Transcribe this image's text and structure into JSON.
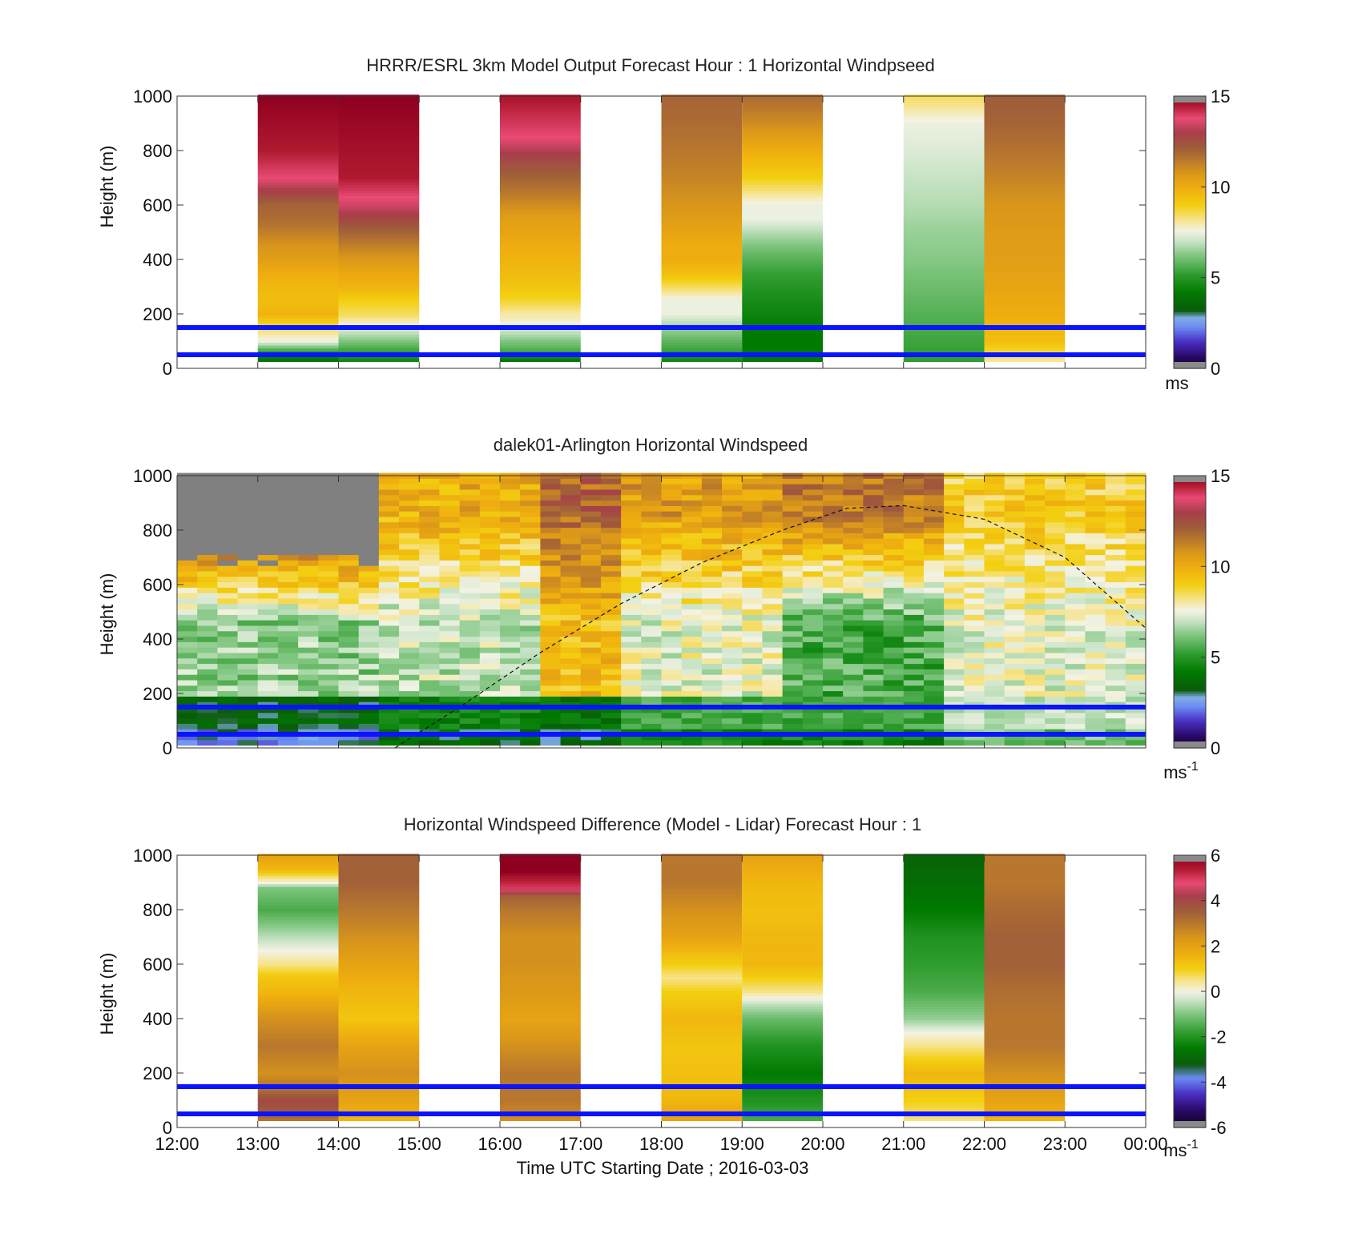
{
  "figure": {
    "xlabel": "Time UTC  Starting Date ; 2016-03-03",
    "x_ticks": [
      "12:00",
      "13:00",
      "14:00",
      "15:00",
      "16:00",
      "17:00",
      "18:00",
      "19:00",
      "20:00",
      "21:00",
      "22:00",
      "23:00",
      "00:00"
    ],
    "overlay_lines_m": [
      50,
      150
    ],
    "overlay_color": "#0a14ff"
  },
  "chart_data": [
    {
      "type": "heatmap",
      "title": "HRRR/ESRL 3km Model Output   Forecast Hour : 1 Horizontal Windpseed",
      "ylabel": "Height (m)",
      "ylim": [
        0,
        1000
      ],
      "y_ticks": [
        "0",
        "200",
        "400",
        "600",
        "800",
        "1000"
      ],
      "colorbar": {
        "range": [
          0,
          15
        ],
        "ticks": [
          "0",
          "5",
          "10",
          "15"
        ],
        "unit": "ms"
      },
      "hours_with_data": [
        13,
        14,
        16,
        18,
        19,
        21,
        22
      ],
      "columns": [
        {
          "start_hour": 13,
          "profile_m_value": [
            [
              25,
              4
            ],
            [
              50,
              4.5
            ],
            [
              75,
              6
            ],
            [
              100,
              7.5
            ],
            [
              125,
              8
            ],
            [
              150,
              8.5
            ],
            [
              200,
              9.8
            ],
            [
              250,
              9.5
            ],
            [
              300,
              9.7
            ],
            [
              350,
              10
            ],
            [
              400,
              10.5
            ],
            [
              450,
              10.8
            ],
            [
              500,
              11.3
            ],
            [
              550,
              11.8
            ],
            [
              600,
              12
            ],
            [
              700,
              13.8
            ],
            [
              800,
              14.5
            ],
            [
              1000,
              15
            ]
          ]
        },
        {
          "start_hour": 14,
          "profile_m_value": [
            [
              25,
              4.5
            ],
            [
              50,
              5
            ],
            [
              75,
              5.6
            ],
            [
              100,
              6.2
            ],
            [
              125,
              6.8
            ],
            [
              150,
              7.3
            ],
            [
              175,
              8
            ],
            [
              200,
              8.5
            ],
            [
              250,
              9
            ],
            [
              300,
              9.8
            ],
            [
              350,
              10.2
            ],
            [
              400,
              10.7
            ],
            [
              450,
              11.3
            ],
            [
              500,
              12
            ],
            [
              600,
              13.5
            ],
            [
              700,
              14.5
            ],
            [
              1000,
              15
            ]
          ]
        },
        {
          "start_hour": 16,
          "profile_m_value": [
            [
              25,
              4
            ],
            [
              50,
              5
            ],
            [
              75,
              5.8
            ],
            [
              100,
              6.2
            ],
            [
              125,
              6.8
            ],
            [
              150,
              7.2
            ],
            [
              175,
              7.8
            ],
            [
              200,
              8
            ],
            [
              250,
              8.8
            ],
            [
              300,
              9.3
            ],
            [
              350,
              9.6
            ],
            [
              400,
              9.8
            ],
            [
              450,
              10
            ],
            [
              500,
              10.3
            ],
            [
              550,
              10.5
            ],
            [
              650,
              11.5
            ],
            [
              750,
              12.5
            ],
            [
              850,
              13.8
            ],
            [
              1000,
              14.6
            ]
          ]
        },
        {
          "start_hour": 18,
          "profile_m_value": [
            [
              25,
              4.5
            ],
            [
              50,
              5
            ],
            [
              75,
              5.5
            ],
            [
              100,
              5.8
            ],
            [
              125,
              6.2
            ],
            [
              150,
              6.5
            ],
            [
              175,
              7
            ],
            [
              200,
              7.5
            ],
            [
              250,
              7.5
            ],
            [
              300,
              8.5
            ],
            [
              350,
              9.5
            ],
            [
              400,
              10
            ],
            [
              450,
              10
            ],
            [
              500,
              10.3
            ],
            [
              600,
              10.8
            ],
            [
              700,
              11.2
            ],
            [
              800,
              11.5
            ],
            [
              900,
              11.8
            ],
            [
              1000,
              12
            ]
          ]
        },
        {
          "start_hour": 19,
          "profile_m_value": [
            [
              25,
              4.2
            ],
            [
              50,
              4.2
            ],
            [
              100,
              4.2
            ],
            [
              150,
              4.2
            ],
            [
              200,
              4.5
            ],
            [
              250,
              4.7
            ],
            [
              300,
              5
            ],
            [
              350,
              5.3
            ],
            [
              400,
              5.7
            ],
            [
              450,
              6.2
            ],
            [
              500,
              6.8
            ],
            [
              550,
              7.5
            ],
            [
              600,
              7.5
            ],
            [
              700,
              9
            ],
            [
              800,
              10
            ],
            [
              900,
              11
            ],
            [
              1000,
              11.8
            ]
          ]
        },
        {
          "start_hour": 21,
          "profile_m_value": [
            [
              25,
              5.2
            ],
            [
              100,
              5.4
            ],
            [
              200,
              5.7
            ],
            [
              300,
              6
            ],
            [
              400,
              6.3
            ],
            [
              500,
              6.5
            ],
            [
              600,
              6.8
            ],
            [
              700,
              7
            ],
            [
              800,
              7.3
            ],
            [
              900,
              7.5
            ],
            [
              1000,
              8.5
            ]
          ]
        },
        {
          "start_hour": 22,
          "profile_m_value": [
            [
              25,
              8
            ],
            [
              50,
              8.5
            ],
            [
              100,
              9.5
            ],
            [
              200,
              10
            ],
            [
              300,
              10.3
            ],
            [
              400,
              10.5
            ],
            [
              500,
              10.6
            ],
            [
              600,
              10.8
            ],
            [
              700,
              11.2
            ],
            [
              800,
              11.6
            ],
            [
              900,
              12
            ],
            [
              1000,
              12.2
            ]
          ]
        }
      ]
    },
    {
      "type": "heatmap",
      "title": "dalek01-Arlington  Horizontal Windspeed",
      "ylabel": "Height (m)",
      "ylim": [
        0,
        1000
      ],
      "y_ticks": [
        "0",
        "200",
        "400",
        "600",
        "800",
        "1000"
      ],
      "colorbar": {
        "range": [
          0,
          15
        ],
        "ticks": [
          "0",
          "5",
          "10",
          "15"
        ],
        "unit": "ms",
        "unit_sup": "-1"
      },
      "time_range_hours": [
        12,
        24
      ],
      "column_count": 48,
      "description_profiles": [
        {
          "from_hour": 12.0,
          "to_hour": 14.5,
          "surface": 2.5,
          "mid": 6.5,
          "upper": 13.5,
          "missing_above_m": 650
        },
        {
          "from_hour": 14.5,
          "to_hour": 16.5,
          "surface": 3.5,
          "mid": 7.0,
          "upper": 10.0
        },
        {
          "from_hour": 16.5,
          "to_hour": 17.5,
          "surface": 3.0,
          "mid": 9.5,
          "upper": 12.0
        },
        {
          "from_hour": 17.5,
          "to_hour": 19.5,
          "surface": 4.5,
          "mid": 7.5,
          "upper": 10.5
        },
        {
          "from_hour": 19.5,
          "to_hour": 21.5,
          "surface": 4.5,
          "mid": 5.5,
          "upper": 11.5
        },
        {
          "from_hour": 21.5,
          "to_hour": 24.0,
          "surface": 6.0,
          "mid": 7.5,
          "upper": 9.0
        }
      ],
      "boundary_layer_curve": [
        [
          14.7,
          0
        ],
        [
          15.5,
          150
        ],
        [
          16.5,
          350
        ],
        [
          17.5,
          530
        ],
        [
          18.5,
          680
        ],
        [
          19.5,
          800
        ],
        [
          20.3,
          880
        ],
        [
          21,
          890
        ],
        [
          22,
          840
        ],
        [
          23,
          700
        ],
        [
          24,
          440
        ]
      ]
    },
    {
      "type": "heatmap",
      "title": "Horizontal Windspeed Difference (Model - Lidar) Forecast Hour : 1",
      "ylabel": "Height (m)",
      "ylim": [
        0,
        1000
      ],
      "y_ticks": [
        "0",
        "200",
        "400",
        "600",
        "800",
        "1000"
      ],
      "colorbar": {
        "range": [
          -6,
          6
        ],
        "ticks": [
          "-6",
          "-4",
          "-2",
          "0",
          "2",
          "4",
          "6"
        ],
        "unit": "ms",
        "unit_sup": "-1"
      },
      "hours_with_data": [
        13,
        14,
        16,
        18,
        19,
        21,
        22
      ],
      "columns": [
        {
          "start_hour": 13,
          "profile_m_value": [
            [
              25,
              3
            ],
            [
              50,
              3.5
            ],
            [
              100,
              4
            ],
            [
              150,
              3
            ],
            [
              200,
              2.5
            ],
            [
              300,
              3
            ],
            [
              400,
              2.5
            ],
            [
              500,
              1.5
            ],
            [
              550,
              1.2
            ],
            [
              600,
              0.5
            ],
            [
              650,
              0
            ],
            [
              700,
              -0.5
            ],
            [
              800,
              -1.5
            ],
            [
              880,
              -1
            ],
            [
              900,
              0
            ],
            [
              950,
              1.5
            ],
            [
              1000,
              2
            ]
          ]
        },
        {
          "start_hour": 14,
          "profile_m_value": [
            [
              25,
              1.5
            ],
            [
              100,
              2
            ],
            [
              200,
              2.5
            ],
            [
              300,
              2
            ],
            [
              400,
              1.2
            ],
            [
              500,
              1.5
            ],
            [
              600,
              2
            ],
            [
              700,
              2.5
            ],
            [
              800,
              3
            ],
            [
              900,
              3.5
            ],
            [
              1000,
              3.5
            ]
          ]
        },
        {
          "start_hour": 16,
          "profile_m_value": [
            [
              25,
              2.5
            ],
            [
              100,
              3
            ],
            [
              200,
              3
            ],
            [
              300,
              2.5
            ],
            [
              400,
              2
            ],
            [
              500,
              2.3
            ],
            [
              600,
              2.5
            ],
            [
              700,
              2.5
            ],
            [
              800,
              3
            ],
            [
              850,
              3.5
            ],
            [
              880,
              5
            ],
            [
              920,
              5.5
            ],
            [
              940,
              6
            ],
            [
              1000,
              6
            ]
          ]
        },
        {
          "start_hour": 18,
          "profile_m_value": [
            [
              25,
              2
            ],
            [
              100,
              1.5
            ],
            [
              200,
              1.3
            ],
            [
              300,
              1.2
            ],
            [
              400,
              1.5
            ],
            [
              500,
              1
            ],
            [
              550,
              0.5
            ],
            [
              600,
              1
            ],
            [
              650,
              1.5
            ],
            [
              700,
              2
            ],
            [
              800,
              2.5
            ],
            [
              900,
              3
            ],
            [
              1000,
              3
            ]
          ]
        },
        {
          "start_hour": 19,
          "profile_m_value": [
            [
              25,
              -1.5
            ],
            [
              100,
              -2
            ],
            [
              200,
              -2.5
            ],
            [
              300,
              -2
            ],
            [
              400,
              -1.2
            ],
            [
              450,
              -0.5
            ],
            [
              500,
              0.5
            ],
            [
              600,
              1.5
            ],
            [
              700,
              1.5
            ],
            [
              800,
              1.3
            ],
            [
              900,
              1.5
            ],
            [
              1000,
              2
            ]
          ]
        },
        {
          "start_hour": 21,
          "profile_m_value": [
            [
              25,
              0.5
            ],
            [
              100,
              1
            ],
            [
              200,
              1.5
            ],
            [
              300,
              0.5
            ],
            [
              350,
              0
            ],
            [
              400,
              -0.8
            ],
            [
              500,
              -1.5
            ],
            [
              600,
              -1.8
            ],
            [
              700,
              -2
            ],
            [
              800,
              -2.5
            ],
            [
              900,
              -2.8
            ],
            [
              1000,
              -3
            ]
          ]
        },
        {
          "start_hour": 22,
          "profile_m_value": [
            [
              25,
              1.5
            ],
            [
              100,
              2
            ],
            [
              200,
              2.5
            ],
            [
              300,
              3
            ],
            [
              400,
              3
            ],
            [
              500,
              3.2
            ],
            [
              600,
              3.5
            ],
            [
              700,
              3.5
            ],
            [
              800,
              3.3
            ],
            [
              900,
              3
            ],
            [
              1000,
              3
            ]
          ]
        }
      ]
    }
  ]
}
